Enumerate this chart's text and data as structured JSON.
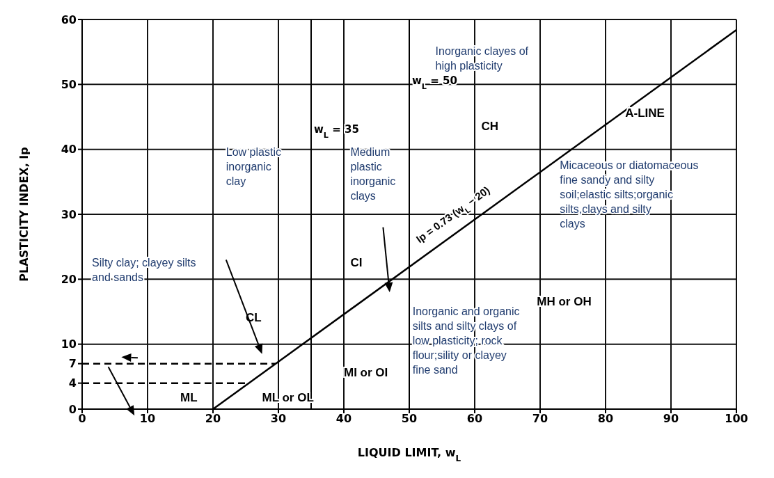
{
  "chart_data": {
    "type": "line",
    "xlabel": "LIQUID LIMIT, w$_{L}$",
    "ylabel": "PLASTICITY INDEX, Ip",
    "xlim": [
      0,
      100
    ],
    "xticks": [
      0,
      10,
      20,
      30,
      40,
      50,
      60,
      70,
      80,
      90,
      100
    ],
    "ylim": [
      0,
      60
    ],
    "yticks": [
      0,
      4,
      7,
      10,
      20,
      30,
      40,
      50,
      60
    ],
    "grid": true,
    "marker": "none",
    "line_style": "solid",
    "series": [
      {
        "x": [
          20,
          100
        ],
        "values": [
          0,
          58.4
        ],
        "color": "#000000"
      }
    ],
    "ref_lines": [
      {
        "axis": "x",
        "value": 35,
        "label": "w$_{L}$ = 35",
        "color": "#000000",
        "line_style": "solid"
      },
      {
        "axis": "x",
        "value": 50,
        "label": "w$_{L}$ = 50",
        "color": "#000000",
        "line_style": "solid"
      },
      {
        "axis": "y",
        "value": 4,
        "color": "#000000",
        "line_style": "dashed"
      },
      {
        "axis": "y",
        "value": 7,
        "color": "#000000",
        "line_style": "dashed"
      }
    ],
    "annotations": [
      "Inorganic clayes of high plasticity",
      "CH",
      "A-LINE",
      "Ip = 0.73 (w$_{L}$ − 20)",
      "Low plastic inorganic clay",
      "Medium plastic inorganic clays",
      "Micaceous or diatomaceous fine sandy and silty soil;elastic silts;organic silts,clays and silty clays",
      "CI",
      "Silty clay; clayey silts and sands",
      "CL",
      "MH or OH",
      "Inorganic and organic silts and silty clays of low plasticity; rock flour;sility or clayey fine sand",
      "ML",
      "ML or OL",
      "MI or OI"
    ]
  }
}
